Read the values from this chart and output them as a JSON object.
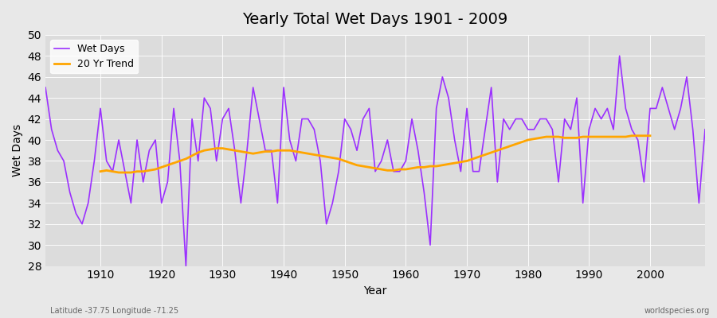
{
  "title": "Yearly Total Wet Days 1901 - 2009",
  "xlabel": "Year",
  "ylabel": "Wet Days",
  "footnote_left": "Latitude -37.75 Longitude -71.25",
  "footnote_right": "worldspecies.org",
  "ylim": [
    28,
    50
  ],
  "wet_days_color": "#9B30FF",
  "trend_color": "#FFA500",
  "bg_color": "#E8E8E8",
  "plot_bg_color": "#DCDCDC",
  "years": [
    1901,
    1902,
    1903,
    1904,
    1905,
    1906,
    1907,
    1908,
    1909,
    1910,
    1911,
    1912,
    1913,
    1914,
    1915,
    1916,
    1917,
    1918,
    1919,
    1920,
    1921,
    1922,
    1923,
    1924,
    1925,
    1926,
    1927,
    1928,
    1929,
    1930,
    1931,
    1932,
    1933,
    1934,
    1935,
    1936,
    1937,
    1938,
    1939,
    1940,
    1941,
    1942,
    1943,
    1944,
    1945,
    1946,
    1947,
    1948,
    1949,
    1950,
    1951,
    1952,
    1953,
    1954,
    1955,
    1956,
    1957,
    1958,
    1959,
    1960,
    1961,
    1962,
    1963,
    1964,
    1965,
    1966,
    1967,
    1968,
    1969,
    1970,
    1971,
    1972,
    1973,
    1974,
    1975,
    1976,
    1977,
    1978,
    1979,
    1980,
    1981,
    1982,
    1983,
    1984,
    1985,
    1986,
    1987,
    1988,
    1989,
    1990,
    1991,
    1992,
    1993,
    1994,
    1995,
    1996,
    1997,
    1998,
    1999,
    2000,
    2001,
    2002,
    2003,
    2004,
    2005,
    2006,
    2007,
    2008,
    2009
  ],
  "wet_days": [
    45,
    41,
    39,
    38,
    35,
    33,
    32,
    34,
    38,
    43,
    38,
    37,
    40,
    37,
    34,
    40,
    36,
    39,
    40,
    34,
    36,
    43,
    38,
    28,
    42,
    38,
    44,
    43,
    38,
    42,
    43,
    39,
    34,
    39,
    45,
    42,
    39,
    39,
    34,
    45,
    40,
    38,
    42,
    42,
    41,
    38,
    32,
    34,
    37,
    42,
    41,
    39,
    42,
    43,
    37,
    38,
    40,
    37,
    37,
    38,
    42,
    39,
    35,
    30,
    43,
    46,
    44,
    40,
    37,
    43,
    37,
    37,
    41,
    45,
    36,
    42,
    41,
    42,
    42,
    41,
    41,
    42,
    42,
    41,
    36,
    42,
    41,
    44,
    34,
    41,
    43,
    42,
    43,
    41,
    48,
    43,
    41,
    40,
    36,
    43,
    43,
    45,
    43,
    41,
    43,
    46,
    41,
    34,
    41
  ],
  "trend_years": [
    1910,
    1911,
    1912,
    1913,
    1914,
    1915,
    1916,
    1917,
    1918,
    1919,
    1920,
    1921,
    1922,
    1923,
    1924,
    1925,
    1926,
    1927,
    1928,
    1929,
    1930,
    1931,
    1932,
    1933,
    1934,
    1935,
    1936,
    1937,
    1938,
    1939,
    1940,
    1941,
    1942,
    1943,
    1944,
    1945,
    1946,
    1947,
    1948,
    1949,
    1950,
    1951,
    1952,
    1953,
    1954,
    1955,
    1956,
    1957,
    1958,
    1959,
    1960,
    1961,
    1962,
    1963,
    1964,
    1965,
    1966,
    1967,
    1968,
    1969,
    1970,
    1971,
    1972,
    1973,
    1974,
    1975,
    1976,
    1977,
    1978,
    1979,
    1980,
    1981,
    1982,
    1983,
    1984,
    1985,
    1986,
    1987,
    1988,
    1989,
    1990,
    1991,
    1992,
    1993,
    1994,
    1995,
    1996,
    1997,
    1998,
    1999,
    2000
  ],
  "trend_values": [
    37.0,
    37.1,
    37.0,
    36.9,
    36.9,
    36.9,
    37.0,
    37.0,
    37.1,
    37.2,
    37.4,
    37.6,
    37.8,
    38.0,
    38.2,
    38.5,
    38.8,
    39.0,
    39.1,
    39.2,
    39.2,
    39.1,
    39.0,
    38.9,
    38.8,
    38.7,
    38.8,
    38.9,
    38.9,
    39.0,
    39.0,
    39.0,
    38.9,
    38.8,
    38.7,
    38.6,
    38.5,
    38.4,
    38.3,
    38.2,
    38.0,
    37.8,
    37.6,
    37.5,
    37.4,
    37.3,
    37.2,
    37.1,
    37.1,
    37.2,
    37.2,
    37.3,
    37.4,
    37.4,
    37.5,
    37.5,
    37.6,
    37.7,
    37.8,
    37.9,
    38.0,
    38.2,
    38.4,
    38.6,
    38.8,
    39.0,
    39.2,
    39.4,
    39.6,
    39.8,
    40.0,
    40.1,
    40.2,
    40.3,
    40.3,
    40.3,
    40.2,
    40.2,
    40.2,
    40.3,
    40.3,
    40.3,
    40.3,
    40.3,
    40.3,
    40.3,
    40.3,
    40.4,
    40.4,
    40.4,
    40.4
  ]
}
